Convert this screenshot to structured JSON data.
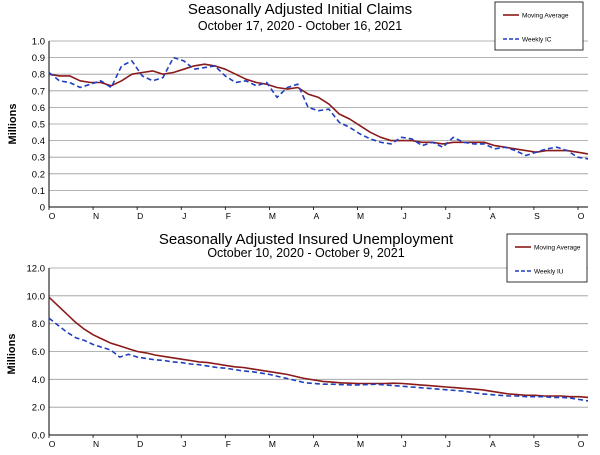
{
  "chart_data": [
    {
      "type": "line",
      "title": "Seasonally Adjusted Initial Claims",
      "subtitle": "October 17, 2020 - October 16, 2021",
      "ylabel": "Millions",
      "ylim": [
        0,
        1.0
      ],
      "yticks": [
        "0",
        "0.1",
        "0.2",
        "0.3",
        "0.4",
        "0.5",
        "0.6",
        "0.7",
        "0.8",
        "0.9",
        "1.0"
      ],
      "xticks": [
        "O",
        "N",
        "D",
        "J",
        "F",
        "M",
        "A",
        "M",
        "J",
        "J",
        "A",
        "S",
        "O"
      ],
      "grid": true,
      "legend_position": "top-right",
      "colors": {
        "moving_average": "#8b1a1a",
        "weekly": "#1f3fbf"
      },
      "series": [
        {
          "name": "Moving Average",
          "style": "solid",
          "values": [
            0.8,
            0.79,
            0.79,
            0.76,
            0.75,
            0.75,
            0.73,
            0.76,
            0.8,
            0.81,
            0.82,
            0.8,
            0.81,
            0.83,
            0.85,
            0.86,
            0.85,
            0.83,
            0.8,
            0.77,
            0.75,
            0.74,
            0.72,
            0.71,
            0.72,
            0.68,
            0.66,
            0.62,
            0.56,
            0.53,
            0.49,
            0.45,
            0.42,
            0.4,
            0.4,
            0.4,
            0.39,
            0.39,
            0.38,
            0.39,
            0.39,
            0.39,
            0.39,
            0.37,
            0.36,
            0.35,
            0.34,
            0.33,
            0.34,
            0.34,
            0.34,
            0.33,
            0.32
          ]
        },
        {
          "name": "Weekly IC",
          "style": "dashed",
          "values": [
            0.81,
            0.76,
            0.75,
            0.72,
            0.74,
            0.76,
            0.72,
            0.85,
            0.88,
            0.79,
            0.76,
            0.78,
            0.9,
            0.88,
            0.83,
            0.84,
            0.85,
            0.79,
            0.75,
            0.76,
            0.73,
            0.75,
            0.66,
            0.72,
            0.74,
            0.6,
            0.58,
            0.59,
            0.51,
            0.48,
            0.44,
            0.41,
            0.39,
            0.38,
            0.42,
            0.41,
            0.37,
            0.39,
            0.36,
            0.42,
            0.39,
            0.38,
            0.38,
            0.35,
            0.36,
            0.34,
            0.31,
            0.33,
            0.35,
            0.36,
            0.34,
            0.3,
            0.29
          ]
        }
      ]
    },
    {
      "type": "line",
      "title": "Seasonally Adjusted Insured Unemployment",
      "subtitle": "October 10, 2020 - October 9, 2021",
      "ylabel": "Millions",
      "ylim": [
        0,
        12.0
      ],
      "yticks": [
        "0.0",
        "2.0",
        "4.0",
        "6.0",
        "8.0",
        "10.0",
        "12.0"
      ],
      "xticks": [
        "O",
        "N",
        "D",
        "J",
        "F",
        "M",
        "A",
        "M",
        "J",
        "J",
        "A",
        "S",
        "O"
      ],
      "grid": true,
      "legend_position": "top-right",
      "colors": {
        "moving_average": "#8b1a1a",
        "weekly": "#1f3fbf"
      },
      "series": [
        {
          "name": "Moving Average",
          "style": "solid",
          "values": [
            9.9,
            9.3,
            8.7,
            8.1,
            7.6,
            7.2,
            6.9,
            6.6,
            6.4,
            6.2,
            6.0,
            5.9,
            5.75,
            5.65,
            5.55,
            5.45,
            5.35,
            5.25,
            5.2,
            5.1,
            5.0,
            4.9,
            4.85,
            4.75,
            4.65,
            4.55,
            4.45,
            4.35,
            4.2,
            4.05,
            3.95,
            3.85,
            3.8,
            3.75,
            3.72,
            3.7,
            3.7,
            3.7,
            3.7,
            3.72,
            3.7,
            3.65,
            3.6,
            3.55,
            3.5,
            3.45,
            3.4,
            3.35,
            3.3,
            3.25,
            3.15,
            3.05,
            2.95,
            2.9,
            2.85,
            2.85,
            2.8,
            2.8,
            2.8,
            2.75,
            2.75,
            2.7
          ]
        },
        {
          "name": "Weekly IU",
          "style": "dashed",
          "values": [
            8.4,
            7.9,
            7.4,
            7.0,
            6.8,
            6.5,
            6.3,
            6.1,
            5.6,
            5.8,
            5.6,
            5.5,
            5.4,
            5.35,
            5.25,
            5.2,
            5.1,
            5.05,
            4.95,
            4.85,
            4.8,
            4.7,
            4.6,
            4.55,
            4.45,
            4.35,
            4.2,
            4.05,
            3.9,
            3.75,
            3.7,
            3.65,
            3.65,
            3.62,
            3.6,
            3.6,
            3.62,
            3.65,
            3.6,
            3.55,
            3.5,
            3.45,
            3.4,
            3.35,
            3.3,
            3.25,
            3.2,
            3.15,
            3.05,
            2.95,
            2.9,
            2.85,
            2.8,
            2.8,
            2.75,
            2.75,
            2.75,
            2.7,
            2.7,
            2.65,
            2.55,
            2.45
          ]
        }
      ]
    }
  ]
}
